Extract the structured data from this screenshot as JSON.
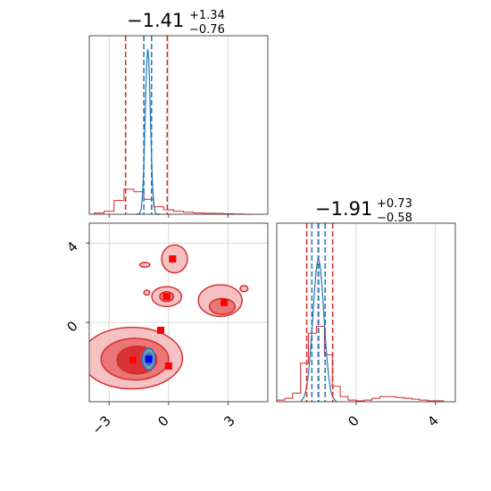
{
  "chart_data": {
    "type": "corner",
    "parameters": [
      {
        "value": "−1.41",
        "plus": "+1.34",
        "minus": "−0.76"
      },
      {
        "value": "−1.91",
        "plus": "+0.73",
        "minus": "−0.58"
      }
    ],
    "axes": {
      "x_param0": {
        "lim": [
          -4.0,
          5.0
        ],
        "ticks": [
          -3,
          0,
          3
        ],
        "tick_labels": [
          "−3",
          "0",
          "3"
        ]
      },
      "y_param1": {
        "lim": [
          -4.0,
          5.0
        ],
        "ticks": [
          0,
          4
        ],
        "tick_labels": [
          "0",
          "4"
        ]
      },
      "x_param1": {
        "lim": [
          -4.0,
          5.0
        ],
        "ticks": [
          0,
          4
        ],
        "tick_labels": [
          "0",
          "4"
        ]
      }
    },
    "grid": true,
    "colors": {
      "series_a": "#d62728",
      "series_b": "#1f77b4",
      "marker_b": "#0000ff"
    },
    "series": [
      {
        "color": "#d62728",
        "quantiles_param0": [
          -2.17,
          -1.41,
          -0.07
        ],
        "quantiles_param1": [
          -2.49,
          -1.91,
          -1.18
        ],
        "hist_param0": {
          "x": [
            -3.5,
            -3.0,
            -2.5,
            -2.0,
            -1.5,
            -1.0,
            -0.5,
            0.0,
            0.5,
            1.0,
            1.5,
            2.0,
            2.5,
            3.0,
            3.5,
            4.0
          ],
          "y": [
            0.05,
            0.12,
            0.55,
            1.0,
            0.9,
            0.6,
            0.3,
            0.18,
            0.12,
            0.08,
            0.05,
            0.04,
            0.03,
            0.02,
            0.01,
            0.0
          ]
        },
        "hist_param1": {
          "x": [
            -3.8,
            -3.4,
            -3.0,
            -2.6,
            -2.2,
            -1.8,
            -1.4,
            -1.0,
            -0.6,
            -0.2,
            0.2,
            0.6,
            1.0,
            1.4,
            1.8,
            2.2,
            2.6,
            3.0,
            3.4,
            3.8,
            4.2
          ],
          "y": [
            0.02,
            0.04,
            0.1,
            0.45,
            0.8,
            0.88,
            0.55,
            0.18,
            0.06,
            0.02,
            0.01,
            0.02,
            0.04,
            0.06,
            0.06,
            0.05,
            0.04,
            0.03,
            0.02,
            0.01,
            0.01
          ]
        },
        "markers": [
          {
            "x": -1.8,
            "y": -1.9
          },
          {
            "x": -0.4,
            "y": -0.4
          },
          {
            "x": 0.0,
            "y": -2.2
          },
          {
            "x": -0.1,
            "y": 1.3
          },
          {
            "x": 0.2,
            "y": 3.2
          },
          {
            "x": 2.8,
            "y": 1.0
          }
        ],
        "contours": [
          {
            "cx": -1.85,
            "cy": -1.8,
            "rx": 2.55,
            "ry": 1.55,
            "level": 1
          },
          {
            "cx": -1.7,
            "cy": -1.85,
            "rx": 1.7,
            "ry": 1.05,
            "level": 2
          },
          {
            "cx": -1.6,
            "cy": -1.9,
            "rx": 1.0,
            "ry": 0.7,
            "level": 3
          },
          {
            "cx": 2.6,
            "cy": 1.1,
            "rx": 1.1,
            "ry": 0.8,
            "level": 1
          },
          {
            "cx": 2.7,
            "cy": 0.8,
            "rx": 0.65,
            "ry": 0.4,
            "level": 2
          },
          {
            "cx": -0.1,
            "cy": 1.3,
            "rx": 0.75,
            "ry": 0.5,
            "level": 1
          },
          {
            "cx": -0.1,
            "cy": 1.3,
            "rx": 0.35,
            "ry": 0.25,
            "level": 2
          },
          {
            "cx": 0.3,
            "cy": 3.2,
            "rx": 0.65,
            "ry": 0.7,
            "level": 1
          },
          {
            "cx": -1.2,
            "cy": 2.9,
            "rx": 0.25,
            "ry": 0.12,
            "level": 1
          },
          {
            "cx": -1.1,
            "cy": 1.5,
            "rx": 0.15,
            "ry": 0.12,
            "level": 1
          },
          {
            "cx": 3.8,
            "cy": 1.7,
            "rx": 0.2,
            "ry": 0.15,
            "level": 1
          }
        ]
      },
      {
        "color": "#1f77b4",
        "quantiles_param0": [
          -1.25,
          -1.13,
          -0.86
        ],
        "quantiles_param1": [
          -2.23,
          -1.89,
          -1.56
        ],
        "peak_param0": {
          "center": -1.05,
          "sigma": 0.13,
          "height": 0.92
        },
        "peak_param1": {
          "center": -1.9,
          "sigma": 0.28,
          "height": 0.95
        },
        "markers": [
          {
            "x": -1.0,
            "y": -1.85
          }
        ],
        "contours": [
          {
            "cx": -1.0,
            "cy": -1.85,
            "rx": 0.32,
            "ry": 0.55,
            "level": 2
          },
          {
            "cx": -1.0,
            "cy": -1.85,
            "rx": 0.18,
            "ry": 0.3,
            "level": 3
          }
        ]
      }
    ]
  }
}
